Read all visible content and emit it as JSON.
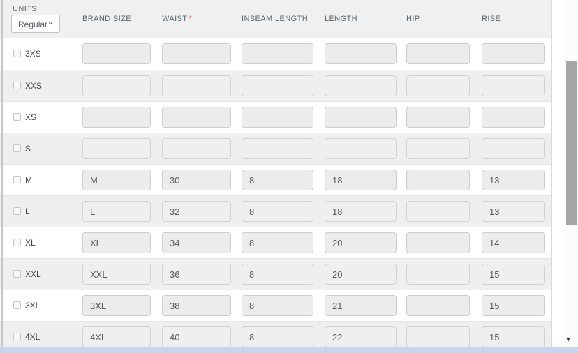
{
  "units_panel": {
    "label": "UNITS",
    "selected": "Regular",
    "options": [
      "Regular"
    ]
  },
  "required_marker": "*",
  "columns": [
    {
      "id": "brand-size",
      "label": "BRAND SIZE",
      "required": false
    },
    {
      "id": "waist",
      "label": "WAIST",
      "required": true
    },
    {
      "id": "inseam-length",
      "label": "INSEAM LENGTH",
      "required": false
    },
    {
      "id": "length",
      "label": "LENGTH",
      "required": false
    },
    {
      "id": "hip",
      "label": "HIP",
      "required": false
    },
    {
      "id": "rise",
      "label": "RISE",
      "required": false
    }
  ],
  "rows": [
    {
      "size": "3XS",
      "checked": false,
      "values": [
        "",
        "",
        "",
        "",
        "",
        ""
      ]
    },
    {
      "size": "XXS",
      "checked": false,
      "values": [
        "",
        "",
        "",
        "",
        "",
        ""
      ]
    },
    {
      "size": "XS",
      "checked": false,
      "values": [
        "",
        "",
        "",
        "",
        "",
        ""
      ]
    },
    {
      "size": "S",
      "checked": false,
      "values": [
        "",
        "",
        "",
        "",
        "",
        ""
      ]
    },
    {
      "size": "M",
      "checked": false,
      "values": [
        "M",
        "30",
        "8",
        "18",
        "",
        "13"
      ]
    },
    {
      "size": "L",
      "checked": false,
      "values": [
        "L",
        "32",
        "8",
        "18",
        "",
        "13"
      ]
    },
    {
      "size": "XL",
      "checked": false,
      "values": [
        "XL",
        "34",
        "8",
        "20",
        "",
        "14"
      ]
    },
    {
      "size": "XXL",
      "checked": false,
      "values": [
        "XXL",
        "36",
        "8",
        "20",
        "",
        "15"
      ]
    },
    {
      "size": "3XL",
      "checked": false,
      "values": [
        "3XL",
        "38",
        "8",
        "21",
        "",
        "15"
      ]
    },
    {
      "size": "4XL",
      "checked": false,
      "values": [
        "4XL",
        "40",
        "8",
        "22",
        "",
        "15"
      ]
    }
  ],
  "icons": {
    "select_chevron": "⌄",
    "scroll_down": "▾"
  },
  "colors": {
    "header_bg": "#f0f0f0",
    "row_alt": "#efefef",
    "required": "#d9534f",
    "scrollbar_thumb": "#a6a6a6",
    "hscroll_bg": "#c9d4ef",
    "hscroll_border": "#aebfe8"
  }
}
